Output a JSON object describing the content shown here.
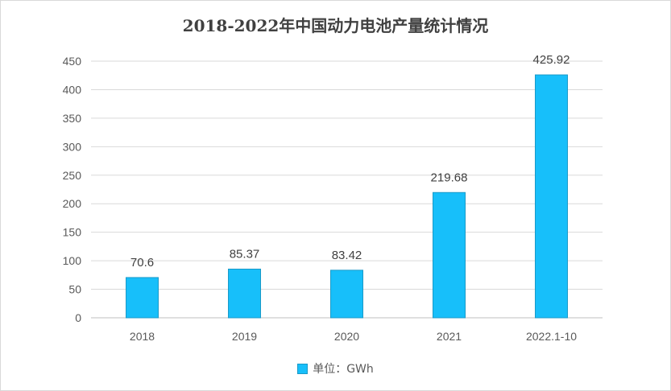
{
  "chart_data": {
    "type": "bar",
    "title": "2018-2022年中国动力电池产量统计情况",
    "categories": [
      "2018",
      "2019",
      "2020",
      "2021",
      "2022.1-10"
    ],
    "series": [
      {
        "name": "单位：GWh",
        "values": [
          70.6,
          85.37,
          83.42,
          219.68,
          425.92
        ]
      }
    ],
    "data_labels": [
      "70.6",
      "85.37",
      "83.42",
      "219.68",
      "425.92"
    ],
    "ylim": [
      0,
      450
    ],
    "yticks": [
      0,
      50,
      100,
      150,
      200,
      250,
      300,
      350,
      400,
      450
    ],
    "grid": true,
    "legend_position": "bottom",
    "bar_color": "#17bffa",
    "bar_edge_color": "#1a9ac8"
  }
}
